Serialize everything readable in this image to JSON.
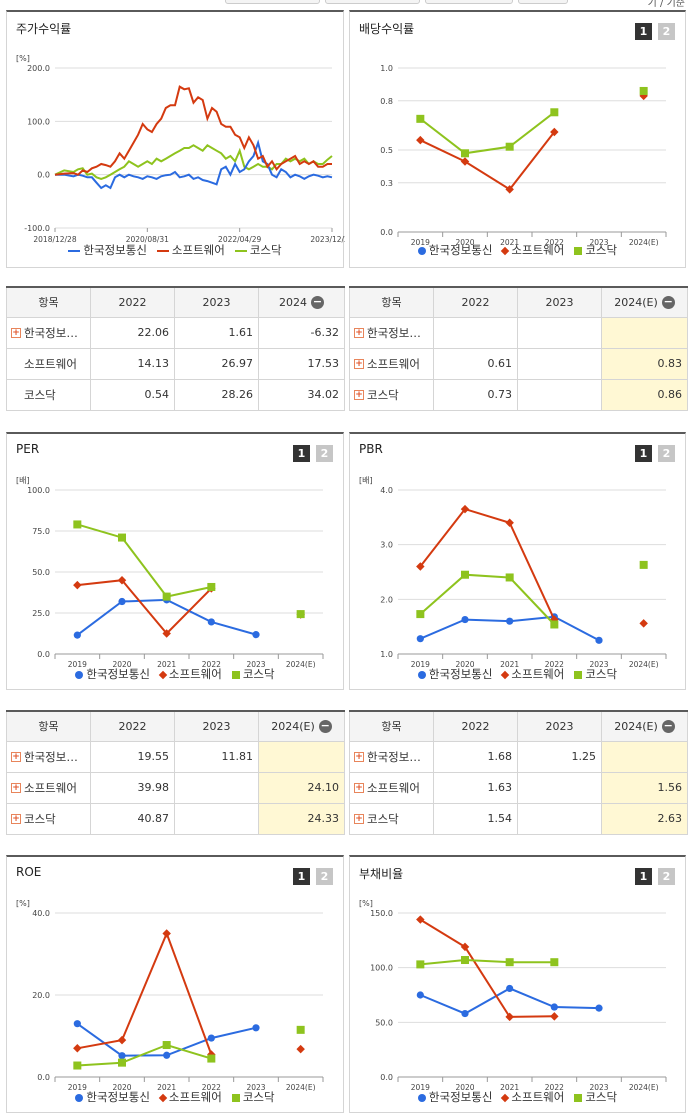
{
  "top_strip_text": "기 / 기준",
  "legend_series": [
    "한국정보통신",
    "소프트웨어",
    "코스닥"
  ],
  "colors": {
    "series": [
      "#2b6be0",
      "#d43a10",
      "#8ec31e"
    ],
    "pager_active": "#333333",
    "pager_inactive": "#c6c6c6",
    "highlight": "#fff8d4"
  },
  "pager": [
    "1",
    "2"
  ],
  "panels": {
    "stock_return": {
      "title": "주가수익률"
    },
    "dividend": {
      "title": "배당수익률"
    },
    "per": {
      "title": "PER"
    },
    "pbr": {
      "title": "PBR"
    },
    "roe": {
      "title": "ROE"
    },
    "debt": {
      "title": "부채비율"
    }
  },
  "tables": {
    "stock_return": {
      "header": [
        "항목",
        "2022",
        "2023",
        "2024"
      ],
      "rows": [
        {
          "label": "한국정보…",
          "expand": true,
          "values": [
            "22.06",
            "1.61",
            "-6.32"
          ]
        },
        {
          "label": "소프트웨어",
          "expand": false,
          "values": [
            "14.13",
            "26.97",
            "17.53"
          ]
        },
        {
          "label": "코스닥",
          "expand": false,
          "values": [
            "0.54",
            "28.26",
            "34.02"
          ]
        }
      ]
    },
    "dividend": {
      "header": [
        "항목",
        "2022",
        "2023",
        "2024(E)"
      ],
      "rows": [
        {
          "label": "한국정보…",
          "expand": true,
          "values": [
            "",
            "",
            ""
          ]
        },
        {
          "label": "소프트웨어",
          "expand": true,
          "values": [
            "0.61",
            "",
            "0.83"
          ]
        },
        {
          "label": "코스닥",
          "expand": true,
          "values": [
            "0.73",
            "",
            "0.86"
          ]
        }
      ]
    },
    "per": {
      "header": [
        "항목",
        "2022",
        "2023",
        "2024(E)"
      ],
      "rows": [
        {
          "label": "한국정보…",
          "expand": true,
          "values": [
            "19.55",
            "11.81",
            ""
          ]
        },
        {
          "label": "소프트웨어",
          "expand": true,
          "values": [
            "39.98",
            "",
            "24.10"
          ]
        },
        {
          "label": "코스닥",
          "expand": true,
          "values": [
            "40.87",
            "",
            "24.33"
          ]
        }
      ]
    },
    "pbr": {
      "header": [
        "항목",
        "2022",
        "2023",
        "2024(E)"
      ],
      "rows": [
        {
          "label": "한국정보…",
          "expand": true,
          "values": [
            "1.68",
            "1.25",
            ""
          ]
        },
        {
          "label": "소프트웨어",
          "expand": true,
          "values": [
            "1.63",
            "",
            "1.56"
          ]
        },
        {
          "label": "코스닥",
          "expand": true,
          "values": [
            "1.54",
            "",
            "2.63"
          ]
        }
      ]
    }
  },
  "chart_data": [
    {
      "id": "stock_return",
      "type": "line",
      "title": "주가수익률",
      "unit": "[%]",
      "ylim": [
        -100,
        200
      ],
      "yticks": [
        "-100.0",
        "0.0",
        "100.0",
        "200.0"
      ],
      "xticks": [
        "2018/12/28",
        "2020/08/31",
        "2022/04/29",
        "2023/12/28"
      ],
      "xlim": [
        0,
        60
      ],
      "series": [
        {
          "name": "한국정보통신",
          "x": [
            0,
            2,
            4,
            5,
            6,
            7,
            8,
            9,
            10,
            11,
            12,
            13,
            14,
            15,
            16,
            17,
            18,
            19,
            20,
            21,
            22,
            23,
            24,
            25,
            26,
            27,
            28,
            29,
            30,
            31,
            32,
            33,
            34,
            35,
            36,
            37,
            38,
            39,
            40,
            41,
            42,
            43,
            44,
            45,
            46,
            47,
            48,
            49,
            50,
            51,
            52,
            53,
            54,
            55,
            56,
            57,
            58,
            59,
            60
          ],
          "y": [
            0,
            0,
            -3,
            0,
            -2,
            -5,
            -5,
            -15,
            -25,
            -20,
            -25,
            -5,
            0,
            -5,
            0,
            -3,
            -5,
            -8,
            -3,
            -5,
            -8,
            -3,
            -1,
            0,
            5,
            -5,
            -3,
            0,
            -8,
            -5,
            -10,
            -12,
            -15,
            -18,
            10,
            15,
            0,
            20,
            5,
            10,
            25,
            35,
            60,
            25,
            20,
            0,
            -5,
            10,
            5,
            -5,
            0,
            -3,
            -8,
            -3,
            0,
            -2,
            -5,
            -3,
            -5
          ]
        },
        {
          "name": "소프트웨어",
          "x": [
            0,
            2,
            4,
            5,
            6,
            7,
            8,
            9,
            10,
            11,
            12,
            13,
            14,
            15,
            16,
            17,
            18,
            19,
            20,
            21,
            22,
            23,
            24,
            25,
            26,
            27,
            28,
            29,
            30,
            31,
            32,
            33,
            34,
            35,
            36,
            37,
            38,
            39,
            40,
            41,
            42,
            43,
            44,
            45,
            46,
            47,
            48,
            49,
            50,
            51,
            52,
            53,
            54,
            55,
            56,
            57,
            58,
            59,
            60
          ],
          "y": [
            0,
            2,
            3,
            0,
            8,
            5,
            12,
            15,
            20,
            18,
            15,
            25,
            40,
            30,
            45,
            60,
            75,
            95,
            85,
            80,
            95,
            105,
            125,
            130,
            130,
            165,
            160,
            162,
            135,
            145,
            140,
            105,
            125,
            118,
            95,
            90,
            90,
            75,
            70,
            50,
            70,
            55,
            30,
            35,
            15,
            25,
            10,
            20,
            25,
            30,
            35,
            20,
            25,
            20,
            25,
            15,
            15,
            20,
            20
          ]
        },
        {
          "name": "코스닥",
          "x": [
            0,
            2,
            4,
            5,
            6,
            7,
            8,
            9,
            10,
            11,
            12,
            13,
            14,
            15,
            16,
            17,
            18,
            19,
            20,
            21,
            22,
            23,
            24,
            25,
            26,
            27,
            28,
            29,
            30,
            31,
            32,
            33,
            34,
            35,
            36,
            37,
            38,
            39,
            40,
            41,
            42,
            43,
            44,
            45,
            46,
            47,
            48,
            49,
            50,
            51,
            52,
            53,
            54,
            55,
            56,
            57,
            58,
            59,
            60
          ],
          "y": [
            0,
            8,
            5,
            10,
            12,
            0,
            2,
            -5,
            -8,
            -5,
            0,
            5,
            10,
            15,
            25,
            20,
            15,
            20,
            25,
            20,
            30,
            25,
            30,
            35,
            40,
            45,
            50,
            50,
            55,
            50,
            45,
            55,
            50,
            45,
            40,
            30,
            35,
            25,
            45,
            15,
            10,
            15,
            20,
            15,
            15,
            10,
            20,
            20,
            30,
            25,
            30,
            25,
            30,
            20,
            25,
            20,
            20,
            28,
            35
          ]
        }
      ]
    },
    {
      "id": "dividend",
      "type": "line",
      "title": "배당수익률",
      "ylim": [
        0,
        1.0
      ],
      "yticks": [
        "0.0",
        "0.3",
        "0.5",
        "0.8",
        "1.0"
      ],
      "categories": [
        "2019",
        "2020",
        "2021",
        "2022",
        "2023",
        "2024(E)"
      ],
      "series": [
        {
          "name": "한국정보통신",
          "values": [
            null,
            null,
            null,
            null,
            null,
            null
          ]
        },
        {
          "name": "소프트웨어",
          "values": [
            0.56,
            0.43,
            0.26,
            0.61,
            null,
            0.83
          ]
        },
        {
          "name": "코스닥",
          "values": [
            0.69,
            0.48,
            0.52,
            0.73,
            null,
            0.86
          ]
        }
      ]
    },
    {
      "id": "per",
      "type": "line",
      "title": "PER",
      "unit": "[배]",
      "ylim": [
        0,
        100
      ],
      "yticks": [
        "0.0",
        "25.0",
        "50.0",
        "75.0",
        "100.0"
      ],
      "categories": [
        "2019",
        "2020",
        "2021",
        "2022",
        "2023",
        "2024(E)"
      ],
      "series": [
        {
          "name": "한국정보통신",
          "values": [
            11.5,
            32,
            33,
            19.55,
            11.81,
            null
          ]
        },
        {
          "name": "소프트웨어",
          "values": [
            42,
            45,
            12.5,
            39.98,
            null,
            24.1
          ]
        },
        {
          "name": "코스닥",
          "values": [
            79,
            71,
            35,
            40.87,
            null,
            24.33
          ]
        }
      ]
    },
    {
      "id": "pbr",
      "type": "line",
      "title": "PBR",
      "unit": "[배]",
      "ylim": [
        1.0,
        4.0
      ],
      "yticks": [
        "1.0",
        "2.0",
        "3.0",
        "4.0"
      ],
      "categories": [
        "2019",
        "2020",
        "2021",
        "2022",
        "2023",
        "2024(E)"
      ],
      "series": [
        {
          "name": "한국정보통신",
          "values": [
            1.28,
            1.63,
            1.6,
            1.68,
            1.25,
            null
          ]
        },
        {
          "name": "소프트웨어",
          "values": [
            2.6,
            3.65,
            3.4,
            1.63,
            null,
            1.56
          ]
        },
        {
          "name": "코스닥",
          "values": [
            1.73,
            2.45,
            2.4,
            1.54,
            null,
            2.63
          ]
        }
      ]
    },
    {
      "id": "roe",
      "type": "line",
      "title": "ROE",
      "unit": "[%]",
      "ylim": [
        0,
        40
      ],
      "yticks": [
        "0.0",
        "20.0",
        "40.0"
      ],
      "categories": [
        "2019",
        "2020",
        "2021",
        "2022",
        "2023",
        "2024(E)"
      ],
      "series": [
        {
          "name": "한국정보통신",
          "values": [
            13,
            5.2,
            5.3,
            9.5,
            12,
            null
          ]
        },
        {
          "name": "소프트웨어",
          "values": [
            7,
            9,
            35,
            5.5,
            null,
            6.8
          ]
        },
        {
          "name": "코스닥",
          "values": [
            2.8,
            3.5,
            7.8,
            4.5,
            null,
            11.5
          ]
        }
      ]
    },
    {
      "id": "debt",
      "type": "line",
      "title": "부채비율",
      "unit": "[%]",
      "ylim": [
        0,
        150
      ],
      "yticks": [
        "0.0",
        "50.0",
        "100.0",
        "150.0"
      ],
      "categories": [
        "2019",
        "2020",
        "2021",
        "2022",
        "2023",
        "2024(E)"
      ],
      "series": [
        {
          "name": "한국정보통신",
          "values": [
            75,
            58,
            81,
            64,
            63,
            null
          ]
        },
        {
          "name": "소프트웨어",
          "values": [
            144,
            119,
            55,
            55.5,
            null,
            null
          ]
        },
        {
          "name": "코스닥",
          "values": [
            103,
            107,
            105,
            105,
            null,
            null
          ]
        }
      ]
    }
  ]
}
